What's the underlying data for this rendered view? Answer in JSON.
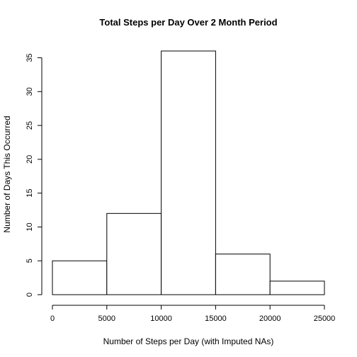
{
  "chart_data": {
    "type": "bar",
    "title": "Total Steps per Day Over 2 Month Period",
    "xlabel": "Number of Steps per Day (with Imputed NAs)",
    "ylabel": "Number of Days This Occurred",
    "bins": [
      {
        "start": 0,
        "end": 5000,
        "count": 5
      },
      {
        "start": 5000,
        "end": 10000,
        "count": 12
      },
      {
        "start": 10000,
        "end": 15000,
        "count": 36
      },
      {
        "start": 15000,
        "end": 20000,
        "count": 6
      },
      {
        "start": 20000,
        "end": 25000,
        "count": 2
      }
    ],
    "xticks": [
      "0",
      "5000",
      "10000",
      "15000",
      "20000",
      "25000"
    ],
    "yticks": [
      "0",
      "5",
      "10",
      "15",
      "20",
      "25",
      "30",
      "35"
    ],
    "xlim": [
      0,
      25000
    ],
    "ylim": [
      0,
      36
    ],
    "grid": false,
    "bar_fill": "#ffffff",
    "bar_stroke": "#000000"
  }
}
